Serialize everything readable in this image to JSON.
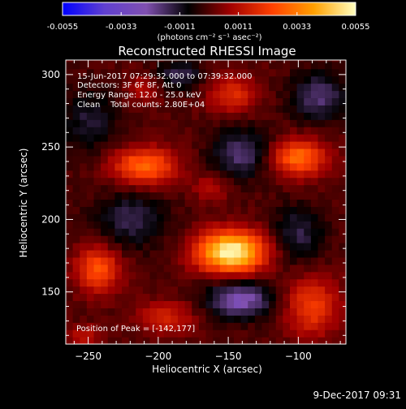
{
  "chart_data": {
    "type": "heatmap",
    "title": "Reconstructed RHESSI Image",
    "xlabel": "Heliocentric X (arcsec)",
    "ylabel": "Heliocentric Y (arcsec)",
    "xlim": [
      -266,
      -66
    ],
    "ylim": [
      114,
      310
    ],
    "x_ticks": [
      -250,
      -200,
      -150,
      -100
    ],
    "y_ticks": [
      150,
      200,
      250,
      300
    ],
    "colorbar": {
      "range": [
        -0.0055,
        0.0055
      ],
      "ticks": [
        "-0.0055",
        "-0.0033",
        "-0.0011",
        "0.0011",
        "0.0033",
        "0.0055"
      ],
      "unit_label": "(photons cm⁻² s⁻¹ asec⁻²)",
      "colors": [
        "#0000ff",
        "#6040d0",
        "#8050b0",
        "#000000",
        "#a00000",
        "#ff4000",
        "#ffa000",
        "#ffffc0"
      ]
    },
    "annotations": [
      "15-Jun-2017 07:29:32.000 to 07:39:32.000",
      "Detectors: 3F 6F 8F, Att 0",
      "Energy Range: 12.0 - 25.0 keV",
      "Clean    Total counts: 2.80E+04"
    ],
    "peak_label": "Position of Peak = [-142,177]",
    "sources": [
      {
        "x": -148,
        "y": 178,
        "sx": 17,
        "sy": 10,
        "value": 0.0055
      },
      {
        "x": -210,
        "y": 237,
        "sx": 16,
        "sy": 9,
        "value": 0.003
      },
      {
        "x": -100,
        "y": 243,
        "sx": 14,
        "sy": 9,
        "value": 0.003
      },
      {
        "x": -243,
        "y": 166,
        "sx": 11,
        "sy": 11,
        "value": 0.0026
      },
      {
        "x": -90,
        "y": 140,
        "sx": 13,
        "sy": 14,
        "value": 0.0022
      },
      {
        "x": -147,
        "y": 287,
        "sx": 12,
        "sy": 9,
        "value": 0.0018
      },
      {
        "x": -195,
        "y": 132,
        "sx": 14,
        "sy": 8,
        "value": 0.0016
      },
      {
        "x": -210,
        "y": 290,
        "sx": 8,
        "sy": 7,
        "value": 0.0012
      },
      {
        "x": -162,
        "y": 222,
        "sx": 10,
        "sy": 6,
        "value": 0.001
      },
      {
        "x": -253,
        "y": 120,
        "sx": 8,
        "sy": 5,
        "value": 0.0012
      },
      {
        "x": -140,
        "y": 246,
        "sx": 15,
        "sy": 12,
        "value": -0.0018
      },
      {
        "x": -142,
        "y": 145,
        "sx": 16,
        "sy": 9,
        "value": -0.0026
      },
      {
        "x": -220,
        "y": 200,
        "sx": 18,
        "sy": 14,
        "value": -0.0014
      },
      {
        "x": -85,
        "y": 285,
        "sx": 14,
        "sy": 12,
        "value": -0.0018
      },
      {
        "x": -185,
        "y": 300,
        "sx": 12,
        "sy": 8,
        "value": -0.0014
      },
      {
        "x": -100,
        "y": 190,
        "sx": 13,
        "sy": 14,
        "value": -0.0014
      },
      {
        "x": -250,
        "y": 268,
        "sx": 14,
        "sy": 16,
        "value": -0.0012
      }
    ]
  },
  "timestamp": "9-Dec-2017 09:31"
}
